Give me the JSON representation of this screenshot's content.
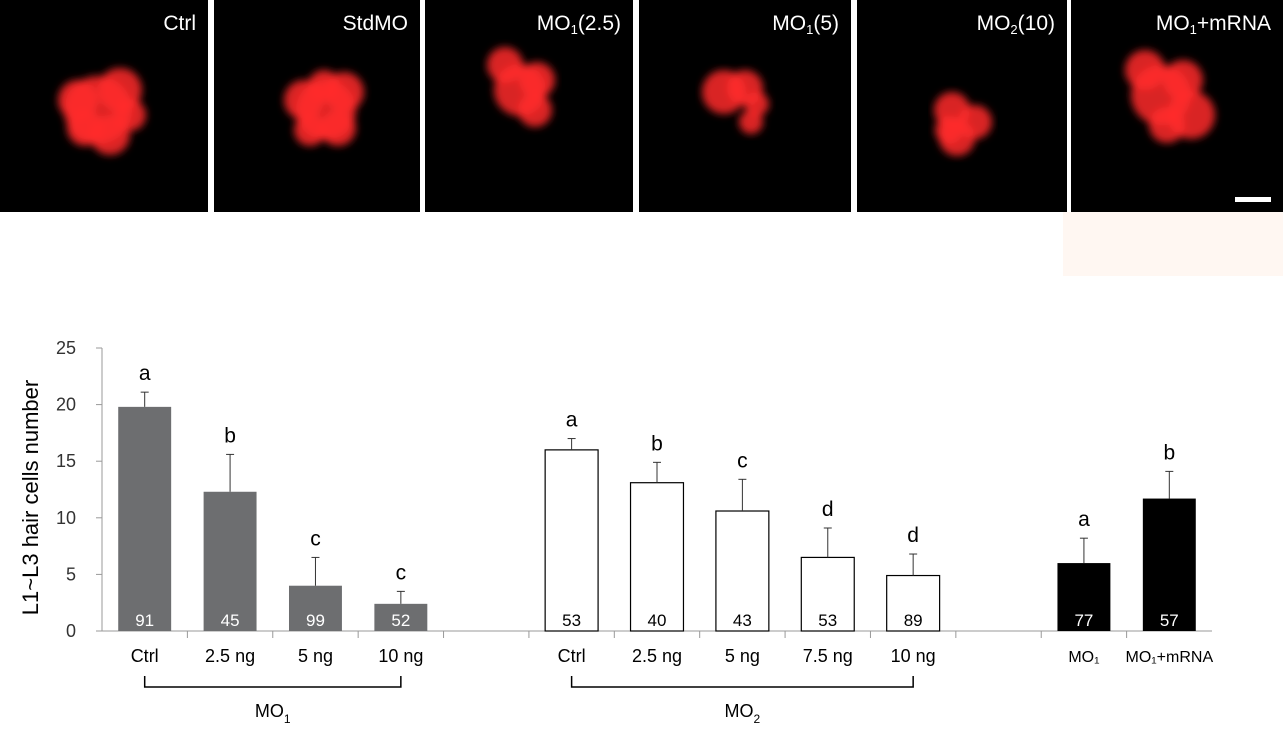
{
  "panels": [
    {
      "label": "Ctrl",
      "sub": "",
      "after": ""
    },
    {
      "label": "StdMO",
      "sub": "",
      "after": ""
    },
    {
      "label": "MO",
      "sub": "1",
      "after": "(2.5)"
    },
    {
      "label": "MO",
      "sub": "1",
      "after": "(5)"
    },
    {
      "label": "MO",
      "sub": "2",
      "after": "(10)"
    },
    {
      "label": "MO",
      "sub": "1",
      "after": "+mRNA"
    }
  ],
  "colors": {
    "mo1_fill": "#6d6e70",
    "mo2_fill": "#ffffff",
    "rescue_fill": "#000000",
    "cell_red": "#ff2a2a"
  },
  "chart_data": {
    "type": "bar",
    "ylabel": "L1~L3 hair cells number",
    "ylim": [
      0,
      25
    ],
    "yticks": [
      "0",
      "5",
      "10",
      "15",
      "20",
      "25"
    ],
    "groups": [
      {
        "name": "MO",
        "name_sub": "1",
        "fill": "mo1",
        "categories": [
          "Ctrl",
          "2.5 ng",
          "5 ng",
          "10 ng"
        ],
        "values": [
          19.8,
          12.3,
          4.0,
          2.4
        ],
        "errors": [
          1.3,
          3.3,
          2.5,
          1.1
        ],
        "letters": [
          "a",
          "b",
          "c",
          "c"
        ],
        "n": [
          "91",
          "45",
          "99",
          "52"
        ]
      },
      {
        "name": "MO",
        "name_sub": "2",
        "fill": "mo2",
        "categories": [
          "Ctrl",
          "2.5 ng",
          "5 ng",
          "7.5 ng",
          "10 ng"
        ],
        "values": [
          16.0,
          13.1,
          10.6,
          6.5,
          4.9
        ],
        "errors": [
          1.0,
          1.8,
          2.8,
          2.6,
          1.9
        ],
        "letters": [
          "a",
          "b",
          "c",
          "d",
          "d"
        ],
        "n": [
          "53",
          "40",
          "43",
          "53",
          "89"
        ]
      },
      {
        "name": "",
        "name_sub": "",
        "fill": "rescue",
        "categories": [
          "MO₁",
          "MO₁+mRNA"
        ],
        "values": [
          6.0,
          11.7
        ],
        "errors": [
          2.2,
          2.4
        ],
        "letters": [
          "a",
          "b"
        ],
        "n": [
          "77",
          "57"
        ]
      }
    ]
  }
}
